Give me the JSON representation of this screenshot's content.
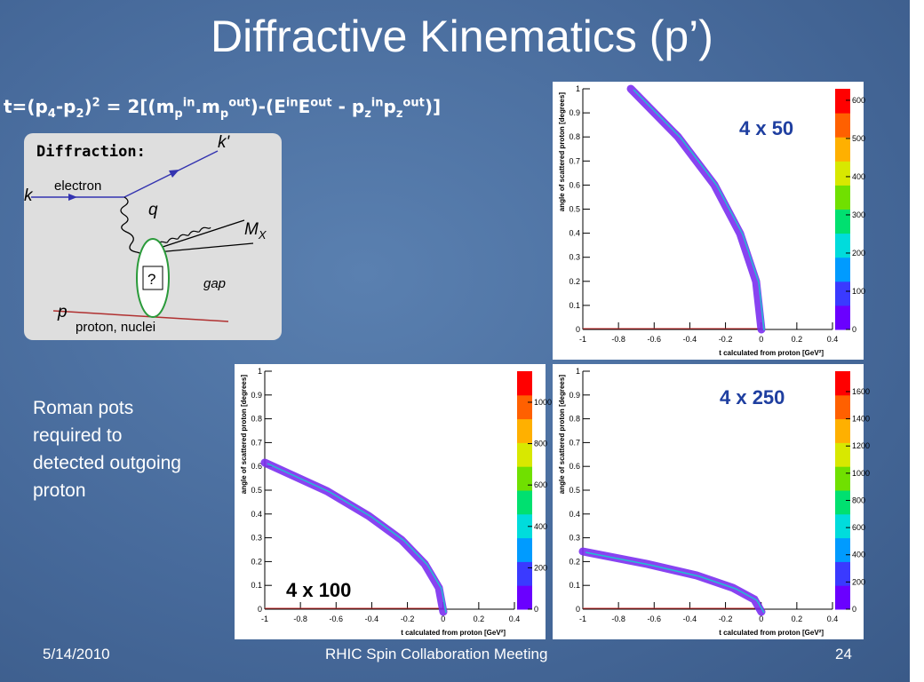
{
  "title": "Diffractive Kinematics (p’)",
  "formula": [
    "t=(p",
    "4",
    "-p",
    "2",
    ")",
    "2",
    " = 2[(m",
    "p",
    "in",
    ".m",
    "p",
    "out",
    ")-(E",
    "in",
    "E",
    "out",
    " - p",
    "z",
    "in",
    "p",
    "z",
    "out",
    ")]"
  ],
  "diagram": {
    "heading": "Diffraction:",
    "k_out": "k'",
    "electron": "electron",
    "k_in": "k",
    "q": "q",
    "mx": "M",
    "mx_sub": "X",
    "blob": "?",
    "gap": "gap",
    "p": "p",
    "proton": "proton, nuclei"
  },
  "body_text": [
    "Roman pots",
    "required to",
    "detected outgoing",
    "proton"
  ],
  "plots": [
    {
      "label": "4 x 50",
      "x_axis_label": "t calculated from proton [GeV²]",
      "y_axis_label": "angle of scattered proton [degrees]",
      "xticks": [
        -1,
        -0.8,
        -0.6,
        -0.4,
        -0.2,
        0,
        0.2,
        0.4
      ],
      "yticks": [
        0,
        0.1,
        0.2,
        0.3,
        0.4,
        0.5,
        0.6,
        0.7,
        0.8,
        0.9,
        1
      ],
      "xlim": [
        -1,
        0.4
      ],
      "ylim": [
        0,
        1
      ],
      "zticks": [
        0,
        100,
        200,
        300,
        400,
        500,
        600
      ],
      "zlim": [
        0,
        630
      ]
    },
    {
      "label": "4 x 100",
      "x_axis_label": "t calculated from proton [GeV²]",
      "y_axis_label": "angle of scattered proton [degrees]",
      "xticks": [
        -1,
        -0.8,
        -0.6,
        -0.4,
        -0.2,
        0,
        0.2,
        0.4
      ],
      "yticks": [
        0,
        0.1,
        0.2,
        0.3,
        0.4,
        0.5,
        0.6,
        0.7,
        0.8,
        0.9,
        1
      ],
      "xlim": [
        -1,
        0.4
      ],
      "ylim": [
        0,
        1
      ],
      "zticks": [
        0,
        200,
        400,
        600,
        800,
        1000
      ],
      "zlim": [
        0,
        1150
      ]
    },
    {
      "label": "4 x 250",
      "x_axis_label": "t calculated from proton [GeV²]",
      "y_axis_label": "angle of scattered proton [degrees]",
      "xticks": [
        -1,
        -0.8,
        -0.6,
        -0.4,
        -0.2,
        0,
        0.2,
        0.4
      ],
      "yticks": [
        0,
        0.1,
        0.2,
        0.3,
        0.4,
        0.5,
        0.6,
        0.7,
        0.8,
        0.9,
        1
      ],
      "xlim": [
        -1,
        0.4
      ],
      "ylim": [
        0,
        1
      ],
      "zticks": [
        0,
        200,
        400,
        600,
        800,
        1000,
        1200,
        1400,
        1600
      ],
      "zlim": [
        0,
        1750
      ]
    }
  ],
  "footer": {
    "date": "5/14/2010",
    "center": "RHIC Spin Collaboration Meeting",
    "page": "24"
  }
}
